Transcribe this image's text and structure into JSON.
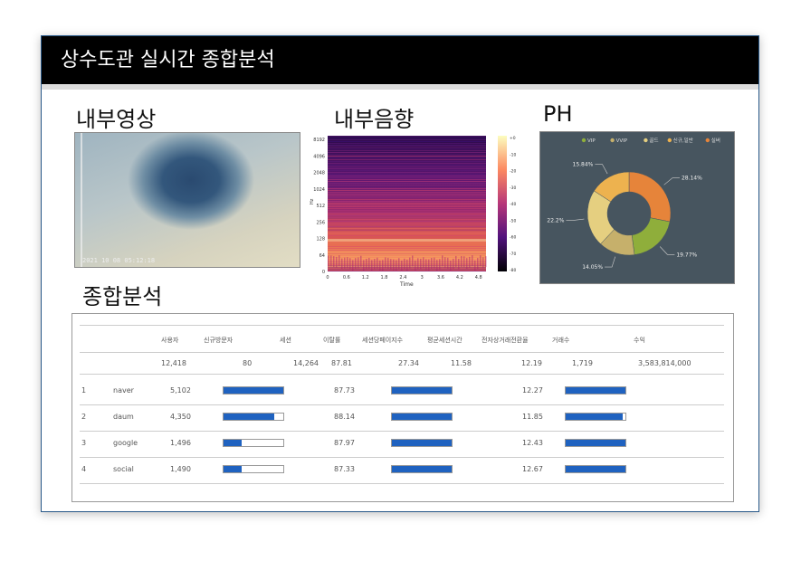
{
  "header": {
    "title": "상수도관 실시간 종합분석"
  },
  "sections": {
    "video": "내부영상",
    "sound": "내부음향",
    "ph": "PH",
    "analysis": "종합분석"
  },
  "camera": {
    "timestamp": "2021 10 08 05:12:18"
  },
  "spectrogram": {
    "y_ticks": [
      "8192",
      "4096",
      "2048",
      "1024",
      "512",
      "256",
      "128",
      "64",
      "0"
    ],
    "y_label": "Hz",
    "x_ticks": [
      "0",
      "0.6",
      "1.2",
      "1.8",
      "2.4",
      "3",
      "3.6",
      "4.2",
      "4.8"
    ],
    "x_label": "Time",
    "colorbar_ticks": [
      "+0 dB",
      "-10 dB",
      "-20 dB",
      "-30 dB",
      "-40 dB",
      "-50 dB",
      "-60 dB",
      "-70 dB",
      "-80 dB"
    ]
  },
  "ph_chart": {
    "legend": [
      "VIP",
      "VVIP",
      "골드",
      "신규,일반",
      "실버"
    ],
    "colors": {
      "VIP": "#8fae3b",
      "VVIP": "#c6b06b",
      "골드": "#e5cf80",
      "신규,일반": "#edb24f",
      "실버": "#e6843a"
    }
  },
  "chart_data": {
    "type": "pie",
    "categories": [
      "실버",
      "VIP",
      "VVIP",
      "골드",
      "신규,일반"
    ],
    "values": [
      28.14,
      19.77,
      14.05,
      22.2,
      15.84
    ],
    "labels": [
      "28.14%",
      "19.77%",
      "14.05%",
      "22.2%",
      "15.84%"
    ],
    "legend": [
      "VIP",
      "VVIP",
      "골드",
      "신규,일반",
      "실버"
    ],
    "legend_position": "top"
  },
  "table": {
    "headers": [
      "사용자",
      "신규방문자",
      "세션",
      "이탈률",
      "세션당페이지수",
      "평균세션시간",
      "전자상거래전환율",
      "거래수",
      "수익"
    ],
    "totals": [
      "12,418",
      "80",
      "14,264",
      "87.81",
      "27.34",
      "11.58",
      "12.19",
      "1,719",
      "3,583,814,000"
    ],
    "rows": [
      {
        "idx": "1",
        "source": "naver",
        "users": "5,102",
        "new_ratio": 1.0,
        "bounce": "87.73",
        "pages_ratio": 1.0,
        "conversion": "12.27",
        "trans_ratio": 1.0
      },
      {
        "idx": "2",
        "source": "daum",
        "users": "4,350",
        "new_ratio": 0.85,
        "bounce": "88.14",
        "pages_ratio": 1.0,
        "conversion": "11.85",
        "trans_ratio": 0.95
      },
      {
        "idx": "3",
        "source": "google",
        "users": "1,496",
        "new_ratio": 0.3,
        "bounce": "87.97",
        "pages_ratio": 1.0,
        "conversion": "12.43",
        "trans_ratio": 1.0
      },
      {
        "idx": "4",
        "source": "social",
        "users": "1,490",
        "new_ratio": 0.3,
        "bounce": "87.33",
        "pages_ratio": 1.0,
        "conversion": "12.67",
        "trans_ratio": 1.0
      }
    ]
  }
}
